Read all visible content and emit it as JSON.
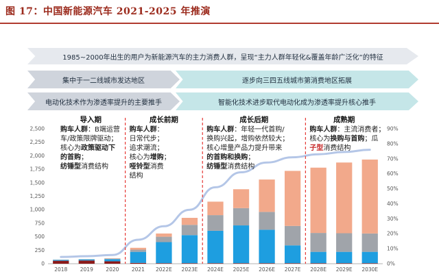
{
  "figure_title": "图 17：中国新能源汽车 2021-2025 年推演",
  "banners": {
    "top": "1985~2000年出生的用户为新能源汽车的主力消费人群，呈现“主力人群年轻化&覆盖年龄广泛化”的特征",
    "left_mid": "集中于一二线城市发达地区",
    "right_mid": "逐步向三四五线城市第消费地区拓展",
    "left_bottom": "电动化技术作为渗透率提升的主要推手",
    "right_bottom": "智能化技术进步取代电动化成为渗透率提升核心推手"
  },
  "stages": [
    {
      "title": "导入期",
      "lines": [
        [
          {
            "t": "购车人群",
            "s": "b"
          },
          {
            "t": "：B端运营"
          }
        ],
        [
          {
            "t": "车/政策限牌驱动；"
          }
        ],
        [
          {
            "t": "核心为"
          },
          {
            "t": "政策驱动下",
            "s": "b"
          }
        ],
        [
          {
            "t": "的首购",
            "s": "b"
          },
          {
            "t": "；"
          }
        ],
        [
          {
            "t": "纺锤型",
            "s": "b"
          },
          {
            "t": "消费结构"
          }
        ]
      ]
    },
    {
      "title": "成长前期",
      "lines": [
        [
          {
            "t": "购车人群",
            "s": "b"
          },
          {
            "t": "："
          }
        ],
        [
          {
            "t": "日常代步；"
          }
        ],
        [
          {
            "t": "追求潮流；"
          }
        ],
        [
          {
            "t": "核心为"
          },
          {
            "t": "增购",
            "s": "b"
          },
          {
            "t": "；"
          }
        ],
        [
          {
            "t": "哑铃型",
            "s": "b"
          },
          {
            "t": "消费"
          }
        ],
        [
          {
            "t": "结构"
          }
        ]
      ]
    },
    {
      "title": "成长后期",
      "lines": [
        [
          {
            "t": "购车人群",
            "s": "b"
          },
          {
            "t": "：年轻一代首购/"
          }
        ],
        [
          {
            "t": "换购兴起，增购依然较大；"
          }
        ],
        [
          {
            "t": "核心增量产品力提升带来"
          }
        ],
        [
          {
            "t": "的首购和换购",
            "s": "b"
          },
          {
            "t": "；"
          }
        ],
        [
          {
            "t": "纺锤型",
            "s": "b"
          },
          {
            "t": "消费结构"
          }
        ]
      ]
    },
    {
      "title": "成熟期",
      "lines": [
        [
          {
            "t": "购车人群",
            "s": "b"
          },
          {
            "t": "：主流消费者；"
          }
        ],
        [
          {
            "t": "核心为"
          },
          {
            "t": "换购与首购",
            "s": "b"
          },
          {
            "t": "；瓜"
          }
        ],
        [
          {
            "t": "子型",
            "s": "red"
          },
          {
            "t": "消费结构"
          }
        ]
      ]
    }
  ],
  "chart_data": {
    "type": "bar",
    "stacked": true,
    "categories": [
      "2018",
      "2019",
      "2020",
      "2021",
      "2022E",
      "2023E",
      "2024E",
      "2025E",
      "2026E",
      "2027E",
      "2028E",
      "2029E",
      "2030E"
    ],
    "series": [
      {
        "color": "#8b1a1a",
        "values": [
          55,
          60,
          45,
          15,
          10,
          10,
          10,
          10,
          10,
          10,
          10,
          10,
          10
        ]
      },
      {
        "color": "#1e9ee0",
        "values": [
          15,
          20,
          40,
          205,
          390,
          520,
          600,
          700,
          620,
          330,
          210,
          210,
          210
        ]
      },
      {
        "color": "#a0a4aa",
        "values": [
          5,
          5,
          10,
          40,
          100,
          190,
          290,
          320,
          330,
          360,
          350,
          345,
          340
        ]
      },
      {
        "color": "#f2a98b",
        "values": [
          0,
          0,
          5,
          35,
          60,
          130,
          250,
          350,
          600,
          1020,
          1210,
          1310,
          1370
        ]
      },
      {
        "type": "line",
        "axis": "right",
        "color": "#b4c6e7",
        "values": [
          4.5,
          5,
          5.8,
          16,
          25,
          36,
          51,
          61,
          67.5,
          71,
          73,
          74.5,
          76
        ]
      }
    ],
    "ylim": [
      0,
      2500
    ],
    "yticks": [
      "0",
      "250",
      "500",
      "750",
      "1,000",
      "1,250",
      "1,500",
      "1,750",
      "2,000",
      "2,250",
      "2,500"
    ],
    "y2lim": [
      0,
      90
    ],
    "y2ticks": [
      "0%",
      "10%",
      "20%",
      "30%",
      "40%",
      "50%",
      "60%",
      "70%",
      "80%",
      "90%"
    ],
    "stage_boundaries_after": [
      "2020",
      "2023E",
      "2027E"
    ]
  }
}
